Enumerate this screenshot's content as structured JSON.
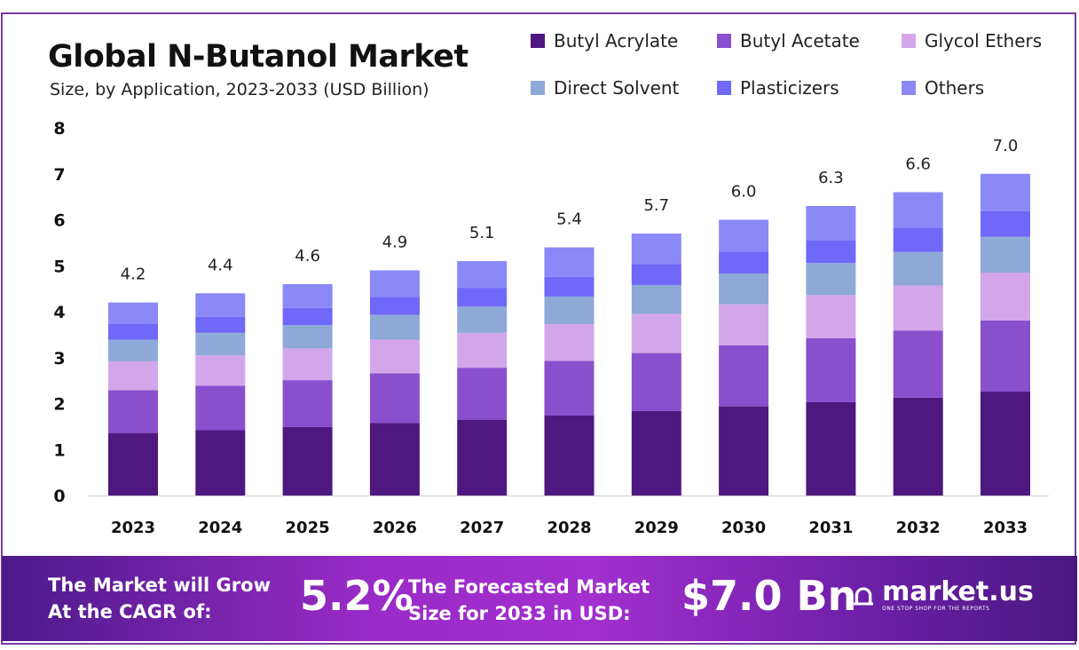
{
  "chart_data": {
    "type": "bar",
    "stacked": true,
    "title": "Global N-Butanol Market",
    "subtitle": "Size, by Application, 2023-2033 (USD Billion)",
    "categories": [
      "2023",
      "2024",
      "2025",
      "2026",
      "2027",
      "2028",
      "2029",
      "2030",
      "2031",
      "2032",
      "2033"
    ],
    "totals": [
      4.2,
      4.4,
      4.6,
      4.9,
      5.1,
      5.4,
      5.7,
      6.0,
      6.3,
      6.6,
      7.0
    ],
    "total_labels": [
      "4.2",
      "4.4",
      "4.6",
      "4.9",
      "5.1",
      "5.4",
      "5.7",
      "6.0",
      "6.3",
      "6.6",
      "7.0"
    ],
    "series": [
      {
        "name": "Butyl Acrylate",
        "color": "#4f1780",
        "values": [
          1.36,
          1.42,
          1.49,
          1.58,
          1.65,
          1.74,
          1.84,
          1.94,
          2.03,
          2.13,
          2.26
        ]
      },
      {
        "name": "Butyl Acetate",
        "color": "#8a4fcc",
        "values": [
          0.93,
          0.97,
          1.02,
          1.08,
          1.13,
          1.19,
          1.26,
          1.33,
          1.39,
          1.46,
          1.55
        ]
      },
      {
        "name": "Glycol Ethers",
        "color": "#d3a6ea",
        "values": [
          0.63,
          0.66,
          0.69,
          0.73,
          0.76,
          0.8,
          0.85,
          0.89,
          0.94,
          0.98,
          1.04
        ]
      },
      {
        "name": "Direct Solvent",
        "color": "#8ea8d8",
        "values": [
          0.47,
          0.49,
          0.51,
          0.54,
          0.57,
          0.6,
          0.63,
          0.67,
          0.7,
          0.73,
          0.78
        ]
      },
      {
        "name": "Plasticizers",
        "color": "#7068f8",
        "values": [
          0.34,
          0.35,
          0.37,
          0.39,
          0.41,
          0.43,
          0.46,
          0.48,
          0.5,
          0.53,
          0.56
        ]
      },
      {
        "name": "Others",
        "color": "#8b88f8",
        "values": [
          0.47,
          0.51,
          0.52,
          0.58,
          0.58,
          0.64,
          0.66,
          0.69,
          0.74,
          0.77,
          0.81
        ]
      }
    ],
    "ylim": [
      0,
      8
    ],
    "yticks": [
      "0",
      "1",
      "2",
      "3",
      "4",
      "5",
      "6",
      "7",
      "8"
    ],
    "grid": false,
    "legend_position": "top-right"
  },
  "footer": {
    "cagr_text_1": "The Market will Grow",
    "cagr_text_2": "At the CAGR of:",
    "cagr_value": "5.2%",
    "forecast_text_1": "The Forecasted Market",
    "forecast_text_2": "Size for 2033 in USD:",
    "forecast_value": "$7.0 Bn",
    "logo_name": "market.us",
    "logo_tagline": "ONE STOP SHOP FOR THE REPORTS"
  }
}
